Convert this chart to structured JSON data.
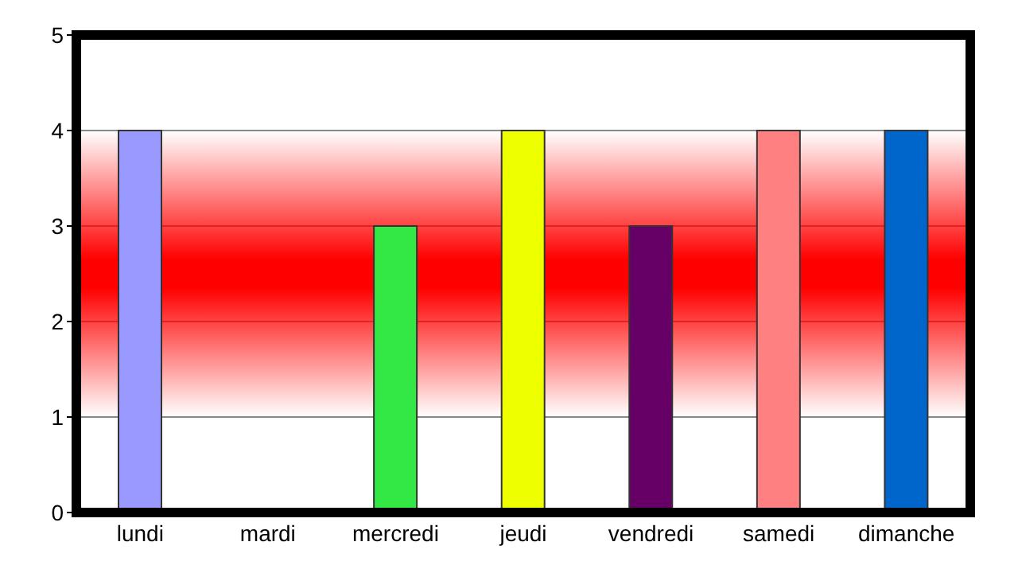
{
  "chart_data": {
    "type": "bar",
    "categories": [
      "lundi",
      "mardi",
      "mercredi",
      "jeudi",
      "vendredi",
      "samedi",
      "dimanche"
    ],
    "values": [
      4,
      0,
      3,
      4,
      3,
      4,
      4
    ],
    "colors": [
      "#9999ff",
      "#888888",
      "#33e845",
      "#eeff00",
      "#660066",
      "#ff8080",
      "#0066cc"
    ],
    "ylim": [
      0,
      5
    ],
    "yticks": [
      0,
      1,
      2,
      3,
      4,
      5
    ],
    "grid": "y",
    "bands": [
      {
        "axis": "y",
        "from": 1,
        "to": 4,
        "color": "#ff0000"
      }
    ]
  }
}
